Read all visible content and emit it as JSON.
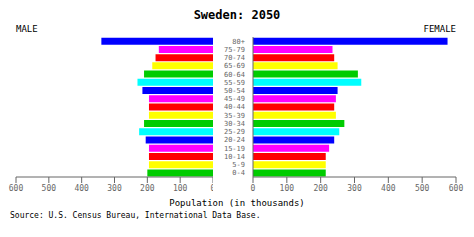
{
  "chart_data": {
    "type": "bar",
    "orientation": "horizontal",
    "title": "Sweden: 2050",
    "xlabel": "Population (in thousands)",
    "annotations": [
      "Source: U.S. Census Bureau, International Data Base."
    ],
    "categories": [
      "0-4",
      "5-9",
      "10-14",
      "15-19",
      "20-24",
      "25-29",
      "30-34",
      "35-39",
      "40-44",
      "45-49",
      "50-54",
      "55-59",
      "60-64",
      "65-69",
      "70-74",
      "75-79",
      "80+"
    ],
    "series": [
      {
        "name": "MALE",
        "values": [
          200,
          195,
          195,
          195,
          205,
          225,
          210,
          195,
          195,
          195,
          215,
          230,
          210,
          185,
          175,
          165,
          340
        ]
      },
      {
        "name": "FEMALE",
        "values": [
          215,
          215,
          215,
          225,
          240,
          255,
          270,
          245,
          240,
          245,
          250,
          320,
          310,
          250,
          240,
          235,
          575
        ]
      }
    ],
    "colors": [
      "#00cc00",
      "#ffff00",
      "#ff0000",
      "#ff00ff",
      "#0000ff",
      "#00ffff",
      "#00cc00",
      "#ffff00",
      "#ff0000",
      "#ff00ff",
      "#0000ff",
      "#00ffff",
      "#00cc00",
      "#ffff00",
      "#ff0000",
      "#ff00ff",
      "#0000ff"
    ],
    "xlim": [
      0,
      600
    ],
    "xticks": [
      0,
      100,
      200,
      300,
      400,
      500,
      600
    ],
    "grid": false
  }
}
